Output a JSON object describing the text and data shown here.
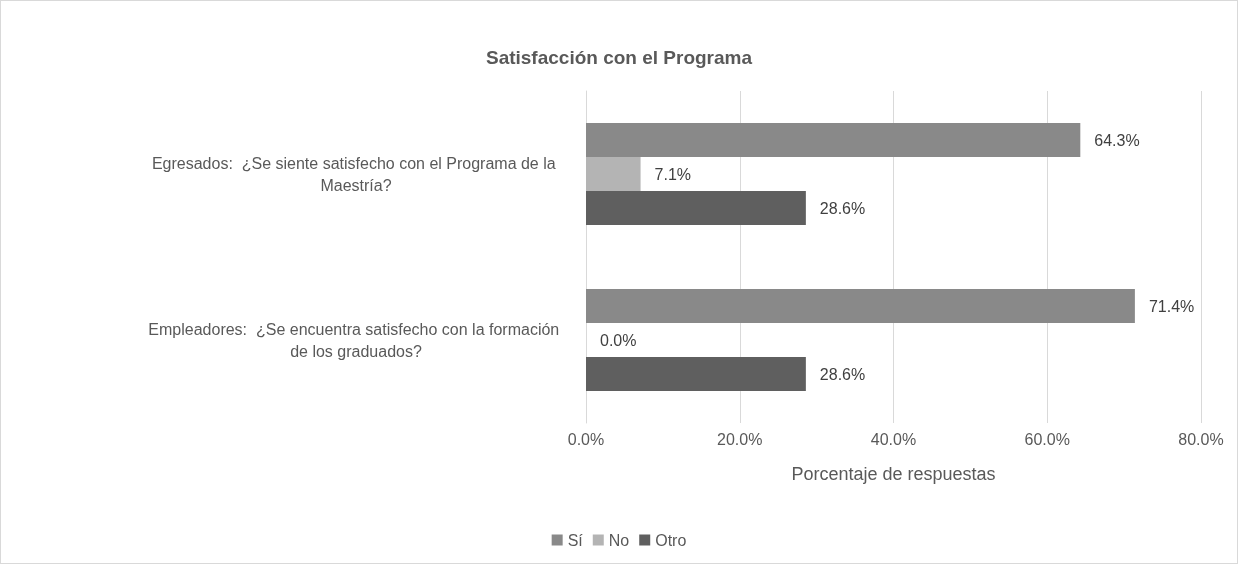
{
  "chart_data": {
    "type": "bar",
    "orientation": "horizontal",
    "title": "Satisfacción con el Programa",
    "xlabel": "Porcentaje de respuestas",
    "categories": [
      "Egresados:  ¿Se siente satisfecho con el Programa de la Maestría?",
      "Empleadores:  ¿Se encuentra satisfecho con la formación de los graduados?"
    ],
    "series": [
      {
        "name": "Sí",
        "color": "#898989",
        "values": [
          64.3,
          71.4
        ],
        "value_labels": [
          "64.3%",
          "71.4%"
        ]
      },
      {
        "name": "No",
        "color": "#b4b4b4",
        "values": [
          7.1,
          0.0
        ],
        "value_labels": [
          "7.1%",
          "0.0%"
        ]
      },
      {
        "name": "Otro",
        "color": "#5f5f5f",
        "values": [
          28.6,
          28.6
        ],
        "value_labels": [
          "28.6%",
          "28.6%"
        ]
      }
    ],
    "xlim": [
      0,
      80
    ],
    "xticks": [
      {
        "value": 0,
        "label": "0.0%"
      },
      {
        "value": 20,
        "label": "20.0%"
      },
      {
        "value": 40,
        "label": "40.0%"
      },
      {
        "value": 60,
        "label": "60.0%"
      },
      {
        "value": 80,
        "label": "80.0%"
      }
    ],
    "grid": "x",
    "legend": "bottom"
  }
}
